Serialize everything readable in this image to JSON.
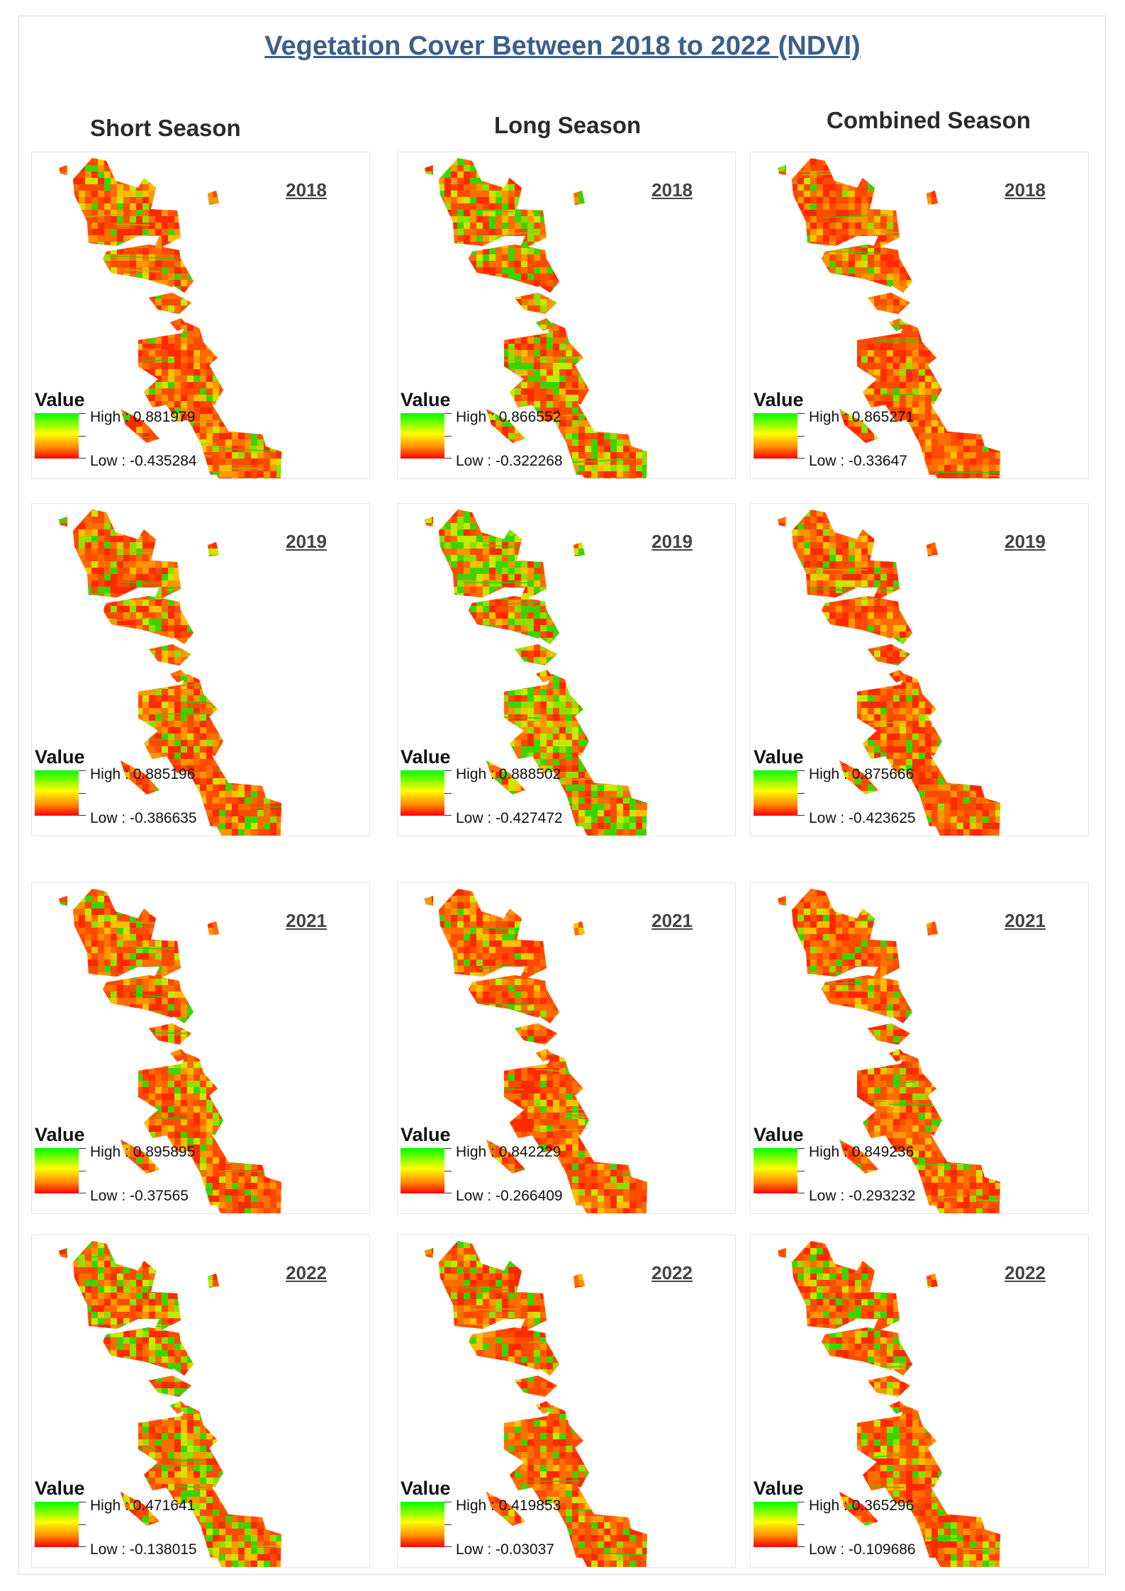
{
  "title": "Vegetation Cover Between 2018 to 2022 (NDVI)",
  "columns": [
    "Short Season",
    "Long Season",
    "Combined Season"
  ],
  "legend_label": "Value",
  "high_prefix": "High : ",
  "low_prefix": "Low : ",
  "colors": {
    "high": "#00ff00",
    "mid": "#ffff00",
    "low": "#ff0000",
    "title": "#3c5f8a"
  },
  "panels": [
    {
      "season": "Short Season",
      "year": "2018",
      "high": "0.881979",
      "low": "-0.435284",
      "greenness": 0.12
    },
    {
      "season": "Long Season",
      "year": "2018",
      "high": "0.866552",
      "low": "-0.322268",
      "greenness": 0.35
    },
    {
      "season": "Combined Season",
      "year": "2018",
      "high": "0.865271",
      "low": "-0.33647",
      "greenness": 0.08
    },
    {
      "season": "Short Season",
      "year": "2019",
      "high": "0.885196",
      "low": "-0.386635",
      "greenness": 0.2
    },
    {
      "season": "Long Season",
      "year": "2019",
      "high": "0.888502",
      "low": "-0.427472",
      "greenness": 0.42
    },
    {
      "season": "Combined Season",
      "year": "2019",
      "high": "0.875666",
      "low": "-0.423625",
      "greenness": 0.15
    },
    {
      "season": "Short Season",
      "year": "2021",
      "high": "0.895895",
      "low": "-0.37565",
      "greenness": 0.18
    },
    {
      "season": "Long Season",
      "year": "2021",
      "high": "0.842229",
      "low": "-0.266409",
      "greenness": 0.1
    },
    {
      "season": "Combined Season",
      "year": "2021",
      "high": "0.849236",
      "low": "-0.293232",
      "greenness": 0.12
    },
    {
      "season": "Short Season",
      "year": "2022",
      "high": "0.471641",
      "low": "-0.138015",
      "greenness": 0.3
    },
    {
      "season": "Long Season",
      "year": "2022",
      "high": "0.419853",
      "low": "-0.03037",
      "greenness": 0.15
    },
    {
      "season": "Combined Season",
      "year": "2022",
      "high": "0.365296",
      "low": "-0.109686",
      "greenness": 0.22
    }
  ]
}
